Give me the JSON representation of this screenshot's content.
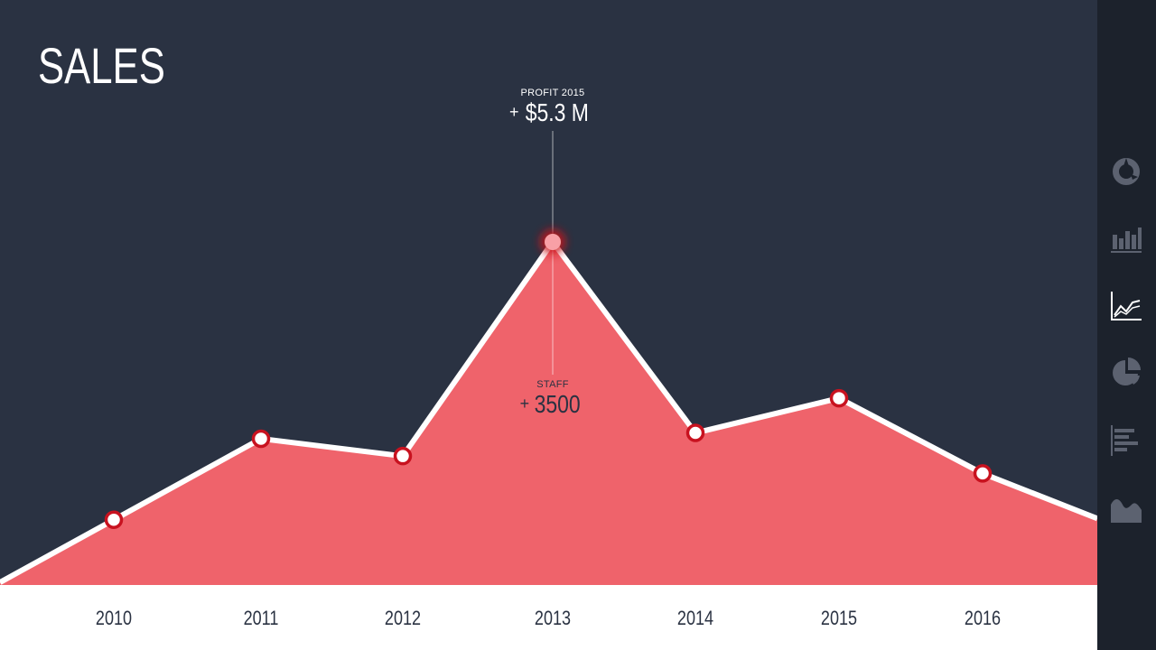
{
  "title": "SALES",
  "colors": {
    "background": "#2a3242",
    "sidebar": "#1c222c",
    "area_fill": "#ef636b",
    "line": "#ffffff",
    "marker_ring": "#c8121f",
    "highlight_point": "#f8a0a6",
    "icon_inactive": "#5c6270",
    "icon_active": "#ffffff"
  },
  "chart_data": {
    "type": "area",
    "categories": [
      "2010",
      "2011",
      "2012",
      "2013",
      "2014",
      "2015",
      "2016"
    ],
    "values": [
      30,
      44,
      41,
      78,
      45,
      51,
      38
    ],
    "highlight_index": 3,
    "grid": false,
    "annotations": {
      "profit": {
        "label": "PROFIT 2015",
        "prefix": "+",
        "value": "$5.3 M"
      },
      "staff": {
        "label": "STAFF",
        "prefix": "+",
        "value": "3500"
      }
    }
  },
  "sidebar": {
    "items": [
      {
        "icon": "donut-chart-icon",
        "active": false
      },
      {
        "icon": "bar-chart-icon",
        "active": false
      },
      {
        "icon": "line-chart-icon",
        "active": true
      },
      {
        "icon": "pie-chart-icon",
        "active": false
      },
      {
        "icon": "horizontal-bar-chart-icon",
        "active": false
      },
      {
        "icon": "area-chart-icon",
        "active": false
      }
    ]
  }
}
